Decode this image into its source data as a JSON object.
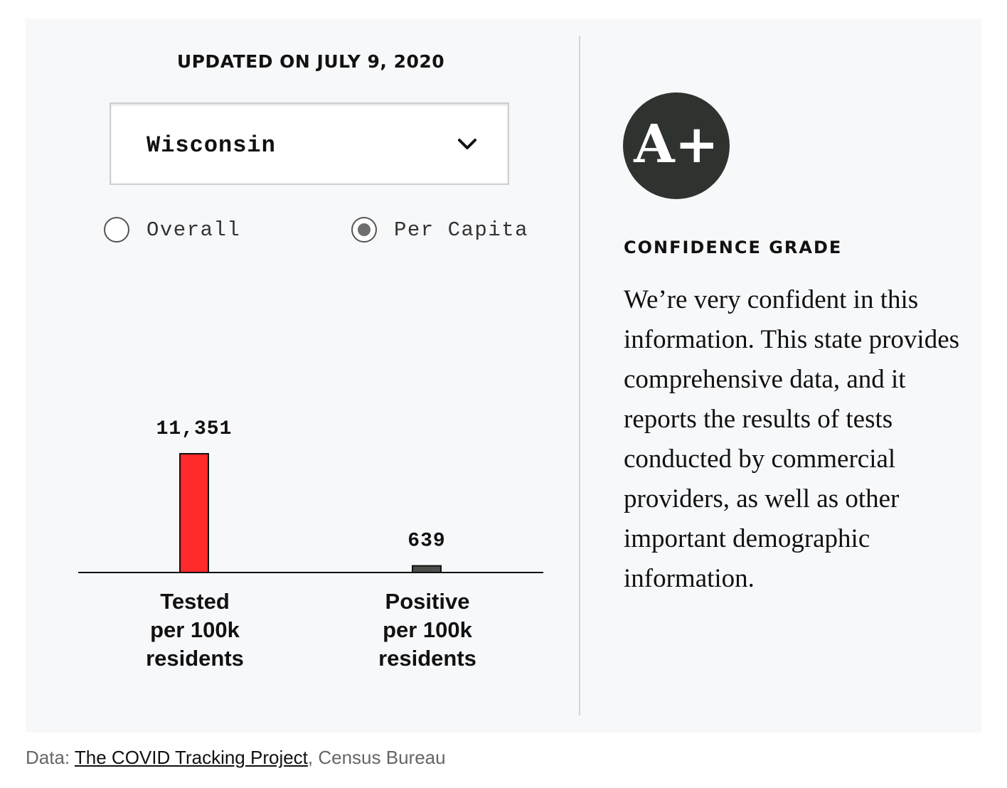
{
  "updated": "UPDATED ON JULY 9, 2020",
  "state_select": {
    "value": "Wisconsin"
  },
  "view_toggle": {
    "options": [
      {
        "label": "Overall",
        "checked": false
      },
      {
        "label": "Per Capita",
        "checked": true
      }
    ]
  },
  "chart_data": {
    "type": "bar",
    "categories": [
      "Tested\nper 100k\nresidents",
      "Positive\nper 100k\nresidents"
    ],
    "values": [
      11351,
      639
    ],
    "value_labels": [
      "11,351",
      "639"
    ],
    "bar_colors": [
      "#ff2a2a",
      "#4a4f4a"
    ],
    "title": "",
    "xlabel": "",
    "ylabel": "",
    "ylim": [
      0,
      11351
    ],
    "grid": false
  },
  "grade": {
    "letter": "A+",
    "title": "CONFIDENCE GRADE",
    "description": "We’re very confident in this information. This state provides comprehensive data, and it reports the results of tests conducted by commercial providers, as well as other important demographic information."
  },
  "source": {
    "prefix": "Data: ",
    "link": "The COVID Tracking Project",
    "suffix": ", Census Bureau"
  }
}
